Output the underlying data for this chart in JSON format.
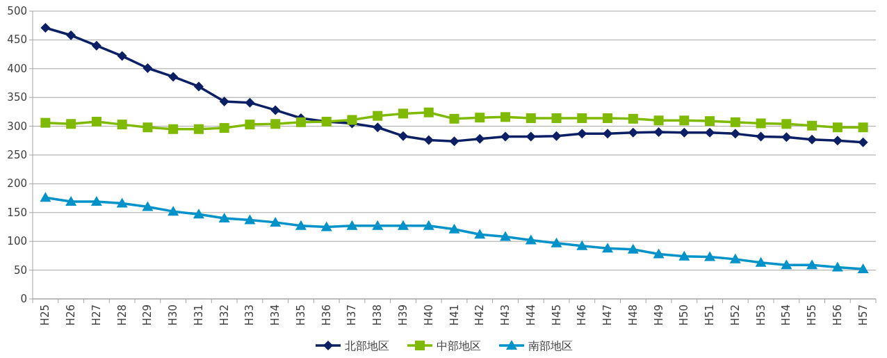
{
  "chart_data": {
    "type": "line",
    "categories": [
      "H25",
      "H26",
      "H27",
      "H28",
      "H29",
      "H30",
      "H31",
      "H32",
      "H33",
      "H34",
      "H35",
      "H36",
      "H37",
      "H38",
      "H39",
      "H40",
      "H41",
      "H42",
      "H43",
      "H44",
      "H45",
      "H46",
      "H47",
      "H48",
      "H49",
      "H50",
      "H51",
      "H52",
      "H53",
      "H54",
      "H55",
      "H56",
      "H57"
    ],
    "series": [
      {
        "name": "北部地区",
        "color": "#0b1f65",
        "marker": "diamond",
        "values": [
          471,
          458,
          440,
          422,
          401,
          386,
          369,
          343,
          341,
          328,
          314,
          308,
          305,
          298,
          283,
          276,
          274,
          278,
          282,
          282,
          283,
          287,
          287,
          289,
          290,
          289,
          289,
          287,
          282,
          281,
          277,
          275,
          272
        ]
      },
      {
        "name": "中部地区",
        "color": "#7fba00",
        "marker": "square",
        "values": [
          306,
          304,
          308,
          303,
          298,
          295,
          295,
          297,
          303,
          304,
          307,
          308,
          311,
          318,
          322,
          324,
          313,
          315,
          316,
          314,
          314,
          314,
          314,
          313,
          310,
          310,
          309,
          307,
          305,
          304,
          301,
          298,
          298
        ]
      },
      {
        "name": "南部地区",
        "color": "#0092c8",
        "marker": "triangle",
        "values": [
          176,
          169,
          169,
          166,
          160,
          152,
          147,
          140,
          137,
          133,
          127,
          125,
          127,
          127,
          127,
          127,
          121,
          112,
          108,
          102,
          97,
          92,
          88,
          86,
          78,
          74,
          73,
          69,
          63,
          59,
          59,
          55,
          52
        ]
      }
    ],
    "ylim": [
      0,
      500
    ],
    "yticks": [
      0,
      50,
      100,
      150,
      200,
      250,
      300,
      350,
      400,
      450,
      500
    ],
    "grid": "y",
    "legend": "bottom",
    "line_style": "solid"
  }
}
